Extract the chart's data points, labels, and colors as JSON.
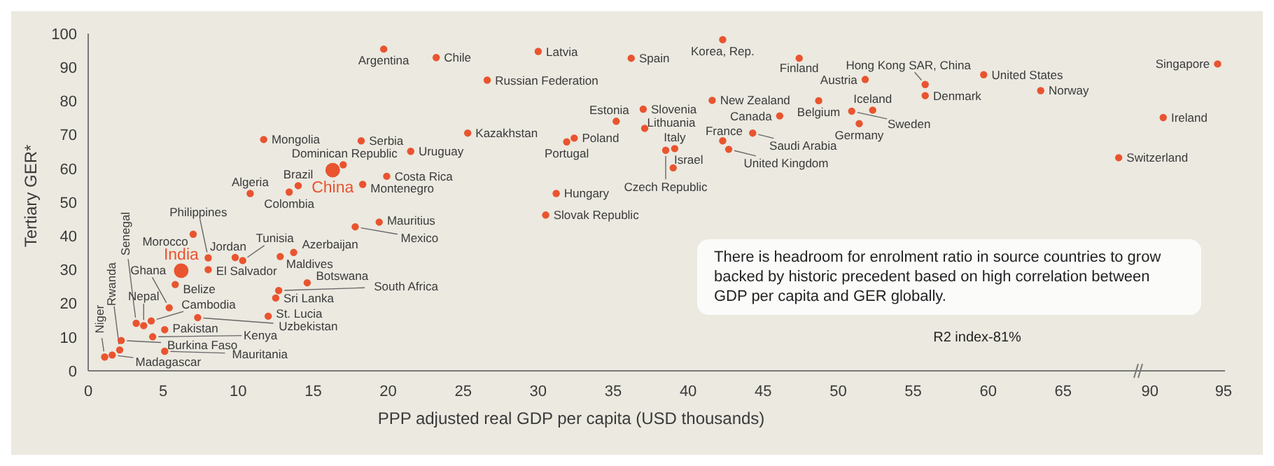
{
  "chart_data": [
    {
      "type": "scatter",
      "xlabel": "PPP adjusted real GDP per capita (USD thousands)",
      "ylabel": "Tertiary GER*",
      "xlim": [
        0,
        70
      ],
      "xticks": [
        0,
        5,
        10,
        15,
        20,
        25,
        30,
        35,
        40,
        45,
        50,
        55,
        60,
        65
      ],
      "ylim": [
        0,
        100
      ],
      "yticks": [
        0,
        10,
        20,
        30,
        40,
        50,
        60,
        70,
        80,
        90,
        100
      ],
      "marker": "circle",
      "annotations": [
        "There is headroom for enrolment ratio in source countries to grow backed by historic precedent based on high correlation between GDP per capita and GER globally.",
        "R2 index-81%"
      ],
      "series": [
        {
          "name": "Niger",
          "color": "#e9542f",
          "x": [
            1.1
          ],
          "values": [
            4.1
          ]
        },
        {
          "name": "Madagascar",
          "color": "#e9542f",
          "x": [
            1.6
          ],
          "values": [
            4.7
          ]
        },
        {
          "name": "Rwanda",
          "color": "#e9542f",
          "x": [
            2.1
          ],
          "values": [
            6.2
          ]
        },
        {
          "name": "Burkina Faso",
          "color": "#e9542f",
          "x": [
            2.2
          ],
          "values": [
            9.0
          ]
        },
        {
          "name": "Senegal",
          "color": "#e9542f",
          "x": [
            3.2
          ],
          "values": [
            14.1
          ]
        },
        {
          "name": "Nepal",
          "color": "#e9542f",
          "x": [
            3.7
          ],
          "values": [
            13.4
          ]
        },
        {
          "name": "Cambodia",
          "color": "#e9542f",
          "x": [
            4.2
          ],
          "values": [
            14.8
          ]
        },
        {
          "name": "Kenya",
          "color": "#e9542f",
          "x": [
            4.3
          ],
          "values": [
            10.1
          ]
        },
        {
          "name": "Mauritania",
          "color": "#e9542f",
          "x": [
            5.1
          ],
          "values": [
            5.8
          ]
        },
        {
          "name": "Pakistan",
          "color": "#e9542f",
          "x": [
            5.1
          ],
          "values": [
            12.2
          ]
        },
        {
          "name": "Ghana",
          "color": "#e9542f",
          "x": [
            5.4
          ],
          "values": [
            18.7
          ]
        },
        {
          "name": "Belize",
          "color": "#e9542f",
          "x": [
            5.8
          ],
          "values": [
            25.6
          ]
        },
        {
          "name": "India",
          "type": "bubble",
          "color": "#e9542f",
          "x": [
            6.2
          ],
          "values": [
            29.7
          ],
          "sizes": [
            1
          ]
        },
        {
          "name": "Morocco",
          "color": "#e9542f",
          "x": [
            7.0
          ],
          "values": [
            40.5
          ]
        },
        {
          "name": "Philippines",
          "color": "#e9542f",
          "x": [
            8.0
          ],
          "values": [
            33.5
          ]
        },
        {
          "name": "El Salvador",
          "color": "#e9542f",
          "x": [
            8.0
          ],
          "values": [
            30.0
          ]
        },
        {
          "name": "Uzbekistan",
          "color": "#e9542f",
          "x": [
            7.3
          ],
          "values": [
            15.8
          ]
        },
        {
          "name": "Jordan",
          "color": "#e9542f",
          "x": [
            9.8
          ],
          "values": [
            33.6
          ]
        },
        {
          "name": "Tunisia",
          "color": "#e9542f",
          "x": [
            10.3
          ],
          "values": [
            32.7
          ]
        },
        {
          "name": "St. Lucia",
          "color": "#e9542f",
          "x": [
            12.0
          ],
          "values": [
            16.2
          ]
        },
        {
          "name": "Sri Lanka",
          "color": "#e9542f",
          "x": [
            12.5
          ],
          "values": [
            21.6
          ]
        },
        {
          "name": "South Africa",
          "color": "#e9542f",
          "x": [
            12.7
          ],
          "values": [
            23.8
          ]
        },
        {
          "name": "Maldives",
          "color": "#e9542f",
          "x": [
            12.8
          ],
          "values": [
            33.9
          ]
        },
        {
          "name": "Azerbaijan",
          "color": "#e9542f",
          "x": [
            13.7
          ],
          "values": [
            35.1
          ]
        },
        {
          "name": "Botswana",
          "color": "#e9542f",
          "x": [
            14.6
          ],
          "values": [
            26.1
          ]
        },
        {
          "name": "Mexico",
          "color": "#e9542f",
          "x": [
            17.8
          ],
          "values": [
            42.7
          ]
        },
        {
          "name": "Mauritius",
          "color": "#e9542f",
          "x": [
            19.4
          ],
          "values": [
            44.1
          ]
        },
        {
          "name": "Algeria",
          "color": "#e9542f",
          "x": [
            10.8
          ],
          "values": [
            52.6
          ]
        },
        {
          "name": "Colombia",
          "color": "#e9542f",
          "x": [
            13.4
          ],
          "values": [
            53.0
          ]
        },
        {
          "name": "Brazil",
          "color": "#e9542f",
          "x": [
            14.0
          ],
          "values": [
            54.9
          ]
        },
        {
          "name": "China",
          "type": "bubble",
          "color": "#e9542f",
          "x": [
            16.3
          ],
          "values": [
            59.5
          ],
          "sizes": [
            1
          ]
        },
        {
          "name": "Dominican Republic",
          "color": "#e9542f",
          "x": [
            17.0
          ],
          "values": [
            61.1
          ]
        },
        {
          "name": "Montenegro",
          "color": "#e9542f",
          "x": [
            18.3
          ],
          "values": [
            55.3
          ]
        },
        {
          "name": "Costa Rica",
          "color": "#e9542f",
          "x": [
            19.9
          ],
          "values": [
            57.7
          ]
        },
        {
          "name": "Mongolia",
          "color": "#e9542f",
          "x": [
            11.7
          ],
          "values": [
            68.6
          ]
        },
        {
          "name": "Serbia",
          "color": "#e9542f",
          "x": [
            18.2
          ],
          "values": [
            68.2
          ]
        },
        {
          "name": "Uruguay",
          "color": "#e9542f",
          "x": [
            21.5
          ],
          "values": [
            65.1
          ]
        },
        {
          "name": "Argentina",
          "color": "#e9542f",
          "x": [
            19.7
          ],
          "values": [
            95.4
          ]
        },
        {
          "name": "Chile",
          "color": "#e9542f",
          "x": [
            23.2
          ],
          "values": [
            92.9
          ]
        },
        {
          "name": "Kazakhstan",
          "color": "#e9542f",
          "x": [
            25.3
          ],
          "values": [
            70.5
          ]
        },
        {
          "name": "Russian Federation",
          "color": "#e9542f",
          "x": [
            26.6
          ],
          "values": [
            86.2
          ]
        },
        {
          "name": "Latvia",
          "color": "#e9542f",
          "x": [
            30.0
          ],
          "values": [
            94.7
          ]
        },
        {
          "name": "Spain",
          "color": "#e9542f",
          "x": [
            36.2
          ],
          "values": [
            92.7
          ]
        },
        {
          "name": "Hungary",
          "color": "#e9542f",
          "x": [
            31.2
          ],
          "values": [
            52.6
          ]
        },
        {
          "name": "Slovak Republic",
          "color": "#e9542f",
          "x": [
            30.5
          ],
          "values": [
            46.2
          ]
        },
        {
          "name": "Portugal",
          "color": "#e9542f",
          "x": [
            31.9
          ],
          "values": [
            67.9
          ]
        },
        {
          "name": "Poland",
          "color": "#e9542f",
          "x": [
            32.4
          ],
          "values": [
            69.0
          ]
        },
        {
          "name": "Estonia",
          "color": "#e9542f",
          "x": [
            35.2
          ],
          "values": [
            74.0
          ]
        },
        {
          "name": "Slovenia",
          "color": "#e9542f",
          "x": [
            37.0
          ],
          "values": [
            77.6
          ]
        },
        {
          "name": "Lithuania",
          "color": "#e9542f",
          "x": [
            37.1
          ],
          "values": [
            71.9
          ]
        },
        {
          "name": "Czech Republic",
          "color": "#e9542f",
          "x": [
            38.5
          ],
          "values": [
            65.4
          ]
        },
        {
          "name": "Italy",
          "color": "#e9542f",
          "x": [
            39.1
          ],
          "values": [
            65.9
          ]
        },
        {
          "name": "Israel",
          "color": "#e9542f",
          "x": [
            39.0
          ],
          "values": [
            60.2
          ]
        },
        {
          "name": "Korea, Rep.",
          "color": "#e9542f",
          "x": [
            42.3
          ],
          "values": [
            98.2
          ]
        },
        {
          "name": "New Zealand",
          "color": "#e9542f",
          "x": [
            41.6
          ],
          "values": [
            80.2
          ]
        },
        {
          "name": "France",
          "color": "#e9542f",
          "x": [
            42.3
          ],
          "values": [
            68.2
          ]
        },
        {
          "name": "United Kingdom",
          "color": "#e9542f",
          "x": [
            42.7
          ],
          "values": [
            65.7
          ]
        },
        {
          "name": "Saudi Arabia",
          "color": "#e9542f",
          "x": [
            44.3
          ],
          "values": [
            70.5
          ]
        },
        {
          "name": "Canada",
          "color": "#e9542f",
          "x": [
            46.1
          ],
          "values": [
            75.6
          ]
        },
        {
          "name": "Finland",
          "color": "#e9542f",
          "x": [
            47.4
          ],
          "values": [
            92.7
          ]
        },
        {
          "name": "Belgium",
          "color": "#e9542f",
          "x": [
            48.7
          ],
          "values": [
            80.1
          ]
        },
        {
          "name": "Austria",
          "color": "#e9542f",
          "x": [
            51.8
          ],
          "values": [
            86.4
          ]
        },
        {
          "name": "Germany",
          "color": "#e9542f",
          "x": [
            51.4
          ],
          "values": [
            73.3
          ]
        },
        {
          "name": "Sweden",
          "color": "#e9542f",
          "x": [
            50.9
          ],
          "values": [
            77.0
          ]
        },
        {
          "name": "Iceland",
          "color": "#e9542f",
          "x": [
            52.3
          ],
          "values": [
            77.3
          ]
        },
        {
          "name": "Hong Kong SAR, China",
          "color": "#e9542f",
          "x": [
            55.8
          ],
          "values": [
            84.9
          ]
        },
        {
          "name": "Denmark",
          "color": "#e9542f",
          "x": [
            55.8
          ],
          "values": [
            81.6
          ]
        },
        {
          "name": "United States",
          "color": "#e9542f",
          "x": [
            59.7
          ],
          "values": [
            87.8
          ]
        },
        {
          "name": "Norway",
          "color": "#e9542f",
          "x": [
            63.5
          ],
          "values": [
            83.1
          ]
        },
        {
          "name": "Switzerland",
          "color": "#e9542f",
          "x": [
            68.7
          ],
          "values": [
            63.2
          ]
        }
      ]
    },
    {
      "type": "scatter",
      "xlim": [
        89.2,
        95.1
      ],
      "xticks": [
        90,
        95
      ],
      "ylim": [
        0,
        100
      ],
      "yticks": [
        0,
        10,
        20,
        30,
        40,
        50,
        60,
        70,
        80,
        90,
        100
      ],
      "tick_labels": "x",
      "marker": "circle",
      "series": [
        {
          "name": "Singapore",
          "color": "#e9542f",
          "x": [
            94.6
          ],
          "values": [
            91.0
          ]
        },
        {
          "name": "Ireland",
          "color": "#e9542f",
          "x": [
            90.9
          ],
          "values": [
            75.1
          ]
        }
      ]
    }
  ]
}
